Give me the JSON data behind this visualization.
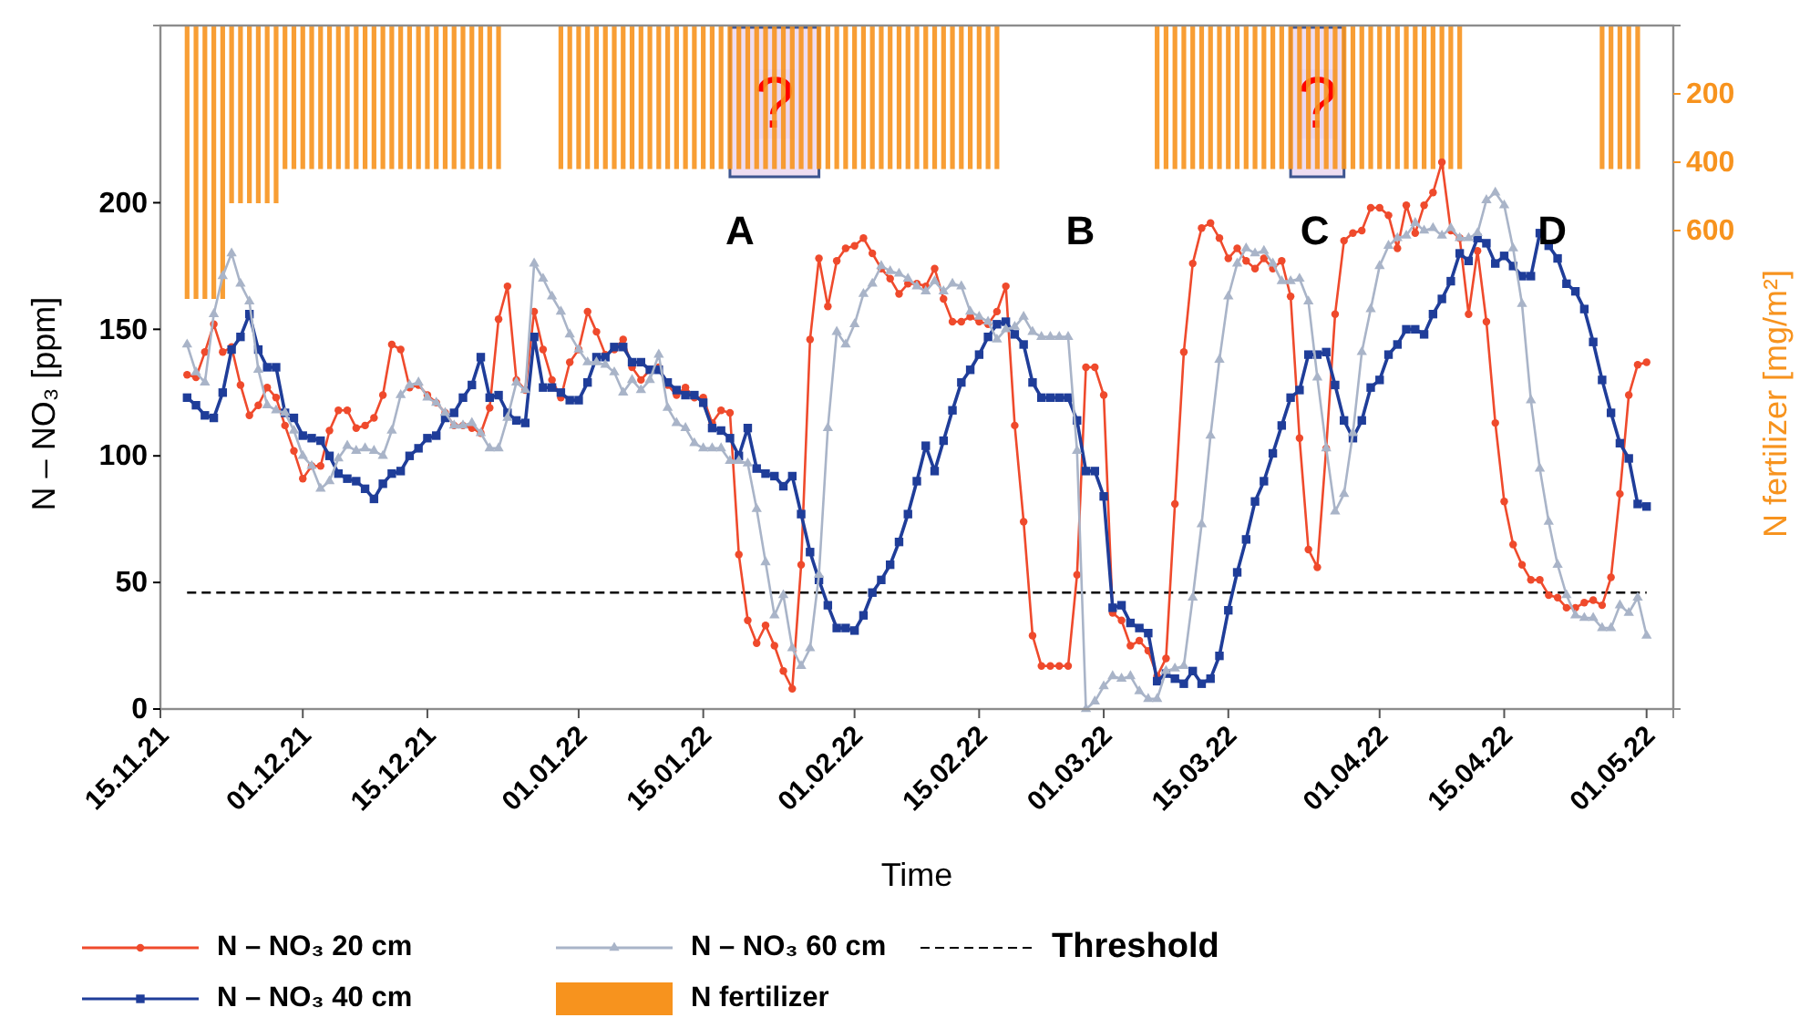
{
  "chart_data": {
    "type": "line",
    "xlabel": "Time",
    "ylabel": "N – NO₃ [ppm]",
    "y2label": "N fertilizer [mg/m²]",
    "legend": "bottom",
    "x": [
      "2021-11-18",
      "2021-11-19",
      "2021-11-20",
      "2021-11-21",
      "2021-11-22",
      "2021-11-23",
      "2021-11-24",
      "2021-11-25",
      "2021-11-26",
      "2021-11-27",
      "2021-11-28",
      "2021-11-29",
      "2021-11-30",
      "2021-12-01",
      "2021-12-02",
      "2021-12-03",
      "2021-12-04",
      "2021-12-05",
      "2021-12-06",
      "2021-12-07",
      "2021-12-08",
      "2021-12-09",
      "2021-12-10",
      "2021-12-11",
      "2021-12-12",
      "2021-12-13",
      "2021-12-14",
      "2021-12-15",
      "2021-12-16",
      "2021-12-17",
      "2021-12-18",
      "2021-12-19",
      "2021-12-20",
      "2021-12-21",
      "2021-12-22",
      "2021-12-23",
      "2021-12-24",
      "2021-12-25",
      "2021-12-26",
      "2021-12-27",
      "2021-12-28",
      "2021-12-29",
      "2021-12-30",
      "2021-12-31",
      "2022-01-01",
      "2022-01-02",
      "2022-01-03",
      "2022-01-04",
      "2022-01-05",
      "2022-01-06",
      "2022-01-07",
      "2022-01-08",
      "2022-01-09",
      "2022-01-10",
      "2022-01-11",
      "2022-01-12",
      "2022-01-13",
      "2022-01-14",
      "2022-01-15",
      "2022-01-16",
      "2022-01-17",
      "2022-01-18",
      "2022-01-19",
      "2022-01-20",
      "2022-01-21",
      "2022-01-22",
      "2022-01-23",
      "2022-01-24",
      "2022-01-25",
      "2022-01-26",
      "2022-01-27",
      "2022-01-28",
      "2022-01-29",
      "2022-01-30",
      "2022-01-31",
      "2022-02-01",
      "2022-02-02",
      "2022-02-03",
      "2022-02-04",
      "2022-02-05",
      "2022-02-06",
      "2022-02-07",
      "2022-02-08",
      "2022-02-09",
      "2022-02-10",
      "2022-02-11",
      "2022-02-12",
      "2022-02-13",
      "2022-02-14",
      "2022-02-15",
      "2022-02-16",
      "2022-02-17",
      "2022-02-18",
      "2022-02-19",
      "2022-02-20",
      "2022-02-21",
      "2022-02-22",
      "2022-02-23",
      "2022-02-24",
      "2022-02-25",
      "2022-02-26",
      "2022-02-27",
      "2022-02-28",
      "2022-03-01",
      "2022-03-02",
      "2022-03-03",
      "2022-03-04",
      "2022-03-05",
      "2022-03-06",
      "2022-03-07",
      "2022-03-08",
      "2022-03-09",
      "2022-03-10",
      "2022-03-11",
      "2022-03-12",
      "2022-03-13",
      "2022-03-14",
      "2022-03-15",
      "2022-03-16",
      "2022-03-17",
      "2022-03-18",
      "2022-03-19",
      "2022-03-20",
      "2022-03-21",
      "2022-03-22",
      "2022-03-23",
      "2022-03-24",
      "2022-03-25",
      "2022-03-26",
      "2022-03-27",
      "2022-03-28",
      "2022-03-29",
      "2022-03-30",
      "2022-03-31",
      "2022-04-01",
      "2022-04-02",
      "2022-04-03",
      "2022-04-04",
      "2022-04-05",
      "2022-04-06",
      "2022-04-07",
      "2022-04-08",
      "2022-04-09",
      "2022-04-10",
      "2022-04-11",
      "2022-04-12",
      "2022-04-13",
      "2022-04-14",
      "2022-04-15",
      "2022-04-16",
      "2022-04-17",
      "2022-04-18",
      "2022-04-19",
      "2022-04-20",
      "2022-04-21",
      "2022-04-22",
      "2022-04-23",
      "2022-04-24",
      "2022-04-25",
      "2022-04-26",
      "2022-04-27",
      "2022-04-28",
      "2022-04-29",
      "2022-04-30",
      "2022-05-01"
    ],
    "xlim": [
      "2021-11-15",
      "2022-05-04"
    ],
    "xticks": [
      {
        "value": "2021-11-15",
        "label": "15.11.21"
      },
      {
        "value": "2021-12-01",
        "label": "01.12.21"
      },
      {
        "value": "2021-12-15",
        "label": "15.12.21"
      },
      {
        "value": "2022-01-01",
        "label": "01.01.22"
      },
      {
        "value": "2022-01-15",
        "label": "15.01.22"
      },
      {
        "value": "2022-02-01",
        "label": "01.02.22"
      },
      {
        "value": "2022-02-15",
        "label": "15.02.22"
      },
      {
        "value": "2022-03-01",
        "label": "01.03.22"
      },
      {
        "value": "2022-03-15",
        "label": "15.03.22"
      },
      {
        "value": "2022-04-01",
        "label": "01.04.22"
      },
      {
        "value": "2022-04-15",
        "label": "15.04.22"
      },
      {
        "value": "2022-05-01",
        "label": "01.05.22"
      }
    ],
    "ylim": [
      0,
      270
    ],
    "yticks": [
      0,
      50,
      100,
      150,
      200
    ],
    "y2lim": [
      2000,
      0
    ],
    "y2ticks": [
      200,
      400,
      600
    ],
    "series": [
      {
        "name": "N – NO₃ 20 cm",
        "color": "#ef4a2c",
        "marker": "circle",
        "values": [
          132,
          131,
          141,
          152,
          141,
          143,
          128,
          116,
          120,
          127,
          123,
          112,
          102,
          91,
          96,
          96,
          110,
          118,
          118,
          111,
          112,
          115,
          124,
          144,
          142,
          127,
          128,
          124,
          121,
          117,
          112,
          112,
          111,
          109,
          119,
          154,
          167,
          130,
          126,
          157,
          142,
          130,
          123,
          137,
          142,
          157,
          149,
          140,
          142,
          146,
          135,
          130,
          134,
          135,
          128,
          124,
          127,
          123,
          123,
          113,
          118,
          117,
          61,
          35,
          26,
          33,
          25,
          15,
          8,
          57,
          146,
          178,
          159,
          177,
          182,
          183,
          186,
          180,
          174,
          170,
          164,
          168,
          168,
          167,
          174,
          162,
          153,
          153,
          155,
          153,
          152,
          157,
          167,
          112,
          74,
          29,
          17,
          17,
          17,
          17,
          53,
          135,
          135,
          124,
          38,
          35,
          25,
          27,
          23,
          13,
          20,
          81,
          141,
          176,
          190,
          192,
          186,
          178,
          182,
          177,
          174,
          178,
          174,
          177,
          163,
          107,
          63,
          56,
          103,
          156,
          185,
          188,
          189,
          198,
          198,
          195,
          182,
          199,
          188,
          199,
          204,
          216,
          189,
          186,
          156,
          181,
          153,
          113,
          82,
          65,
          57,
          51,
          51,
          45,
          44,
          40,
          40,
          42,
          43,
          41,
          52,
          85,
          124,
          136,
          137
        ]
      },
      {
        "name": "N – NO₃ 40 cm",
        "color": "#1f3d99",
        "marker": "square",
        "values": [
          123,
          120,
          116,
          115,
          125,
          142,
          147,
          156,
          142,
          135,
          135,
          117,
          115,
          108,
          107,
          106,
          100,
          93,
          91,
          90,
          87,
          83,
          89,
          93,
          94,
          100,
          103,
          107,
          108,
          115,
          117,
          123,
          128,
          139,
          123,
          124,
          117,
          114,
          113,
          147,
          127,
          127,
          125,
          122,
          122,
          129,
          139,
          139,
          143,
          143,
          137,
          137,
          134,
          134,
          129,
          126,
          124,
          124,
          121,
          111,
          110,
          107,
          100,
          111,
          95,
          93,
          92,
          88,
          92,
          77,
          62,
          51,
          41,
          32,
          32,
          31,
          37,
          46,
          51,
          57,
          66,
          77,
          90,
          104,
          94,
          106,
          118,
          129,
          134,
          140,
          147,
          152,
          153,
          148,
          144,
          129,
          123,
          123,
          123,
          123,
          114,
          94,
          94,
          84,
          40,
          41,
          34,
          32,
          30,
          11,
          14,
          12,
          10,
          15,
          10,
          12,
          21,
          39,
          54,
          67,
          82,
          90,
          101,
          112,
          123,
          126,
          140,
          140,
          141,
          128,
          114,
          107,
          114,
          127,
          130,
          140,
          144,
          150,
          150,
          148,
          156,
          162,
          169,
          180,
          177,
          186,
          184,
          176,
          179,
          175,
          171,
          171,
          188,
          183,
          178,
          168,
          165,
          158,
          145,
          130,
          117,
          105,
          99,
          81,
          80
        ]
      },
      {
        "name": "N – NO₃ 60 cm",
        "color": "#a9b4c8",
        "marker": "triangle",
        "values": [
          144,
          133,
          129,
          156,
          171,
          180,
          168,
          161,
          134,
          120,
          118,
          117,
          110,
          100,
          96,
          87,
          90,
          99,
          104,
          102,
          103,
          102,
          100,
          110,
          124,
          128,
          129,
          123,
          121,
          117,
          112,
          112,
          113,
          109,
          103,
          103,
          115,
          129,
          126,
          176,
          170,
          163,
          157,
          148,
          142,
          137,
          137,
          136,
          133,
          125,
          130,
          126,
          130,
          140,
          119,
          113,
          111,
          105,
          103,
          103,
          103,
          98,
          98,
          97,
          79,
          58,
          37,
          45,
          24,
          17,
          24,
          53,
          111,
          149,
          144,
          152,
          164,
          168,
          175,
          173,
          172,
          170,
          167,
          165,
          169,
          165,
          168,
          167,
          157,
          155,
          153,
          146,
          150,
          151,
          155,
          149,
          147,
          147,
          147,
          147,
          102,
          0,
          3,
          9,
          13,
          12,
          13,
          7,
          4,
          4,
          15,
          16,
          17,
          44,
          73,
          108,
          138,
          163,
          176,
          182,
          180,
          181,
          176,
          169,
          169,
          170,
          161,
          131,
          103,
          78,
          85,
          109,
          141,
          158,
          175,
          183,
          186,
          187,
          192,
          189,
          190,
          187,
          190,
          186,
          186,
          188,
          201,
          204,
          199,
          182,
          160,
          122,
          95,
          74,
          57,
          45,
          37,
          36,
          36,
          32,
          32,
          41,
          38,
          44,
          29
        ]
      },
      {
        "name": "N fertilizer",
        "type": "bar",
        "axis": "y2",
        "color": "#f7931e",
        "values": [
          800,
          800,
          800,
          800,
          800,
          520,
          520,
          520,
          520,
          520,
          520,
          420,
          420,
          420,
          420,
          420,
          420,
          420,
          420,
          420,
          420,
          420,
          420,
          420,
          420,
          420,
          420,
          420,
          420,
          420,
          420,
          420,
          420,
          420,
          420,
          420,
          null,
          null,
          null,
          null,
          null,
          null,
          420,
          420,
          420,
          420,
          420,
          420,
          420,
          420,
          420,
          420,
          420,
          420,
          420,
          420,
          420,
          420,
          420,
          420,
          420,
          420,
          420,
          420,
          420,
          420,
          420,
          420,
          420,
          420,
          420,
          420,
          420,
          420,
          420,
          420,
          420,
          420,
          420,
          420,
          420,
          420,
          420,
          420,
          420,
          420,
          420,
          420,
          420,
          420,
          420,
          420,
          null,
          null,
          null,
          null,
          null,
          null,
          null,
          null,
          null,
          null,
          null,
          null,
          null,
          null,
          null,
          null,
          null,
          420,
          420,
          420,
          420,
          420,
          420,
          420,
          420,
          420,
          420,
          420,
          420,
          420,
          420,
          420,
          420,
          420,
          420,
          420,
          420,
          420,
          420,
          420,
          420,
          420,
          420,
          420,
          420,
          420,
          420,
          420,
          420,
          420,
          420,
          420,
          null,
          null,
          null,
          null,
          null,
          null,
          null,
          null,
          null,
          null,
          null,
          null,
          null,
          null,
          null,
          420,
          420,
          420,
          420,
          420,
          null
        ]
      }
    ],
    "ref_lines": [
      {
        "axis": "y",
        "value": 46,
        "label": "Threshold",
        "line_style": "dashed",
        "color": "#000000"
      }
    ],
    "bands": [
      {
        "axis": "x",
        "from": "2022-01-18",
        "to": "2022-01-28",
        "label": "?",
        "color": "#ead6ee"
      },
      {
        "axis": "x",
        "from": "2022-03-22",
        "to": "2022-03-28",
        "label": "?",
        "color": "#ead6ee"
      }
    ],
    "annotations": [
      "A",
      "B",
      "C",
      "D"
    ]
  }
}
